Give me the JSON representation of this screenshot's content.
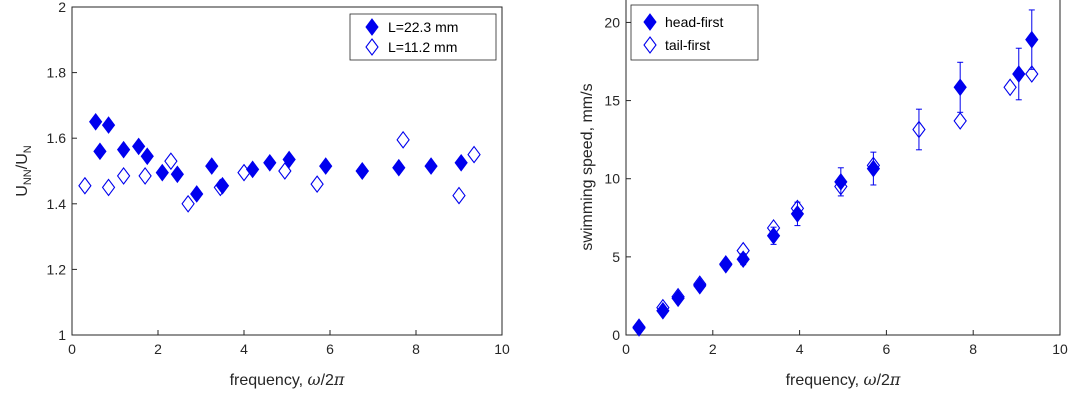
{
  "marker_color": "#0000ee",
  "chart_data": [
    {
      "type": "scatter",
      "xlabel": "frequency, ω/2π",
      "ylabel": "U_NN/U_N",
      "xlim": [
        0,
        10
      ],
      "ylim": [
        1,
        2
      ],
      "xticks": [
        0,
        2,
        4,
        6,
        8,
        10
      ],
      "yticks": [
        1,
        1.2,
        1.4,
        1.6,
        1.8,
        2
      ],
      "xtick_labels": [
        "0",
        "2",
        "4",
        "6",
        "8",
        "10"
      ],
      "ytick_labels": [
        "1",
        "1.2",
        "1.4",
        "1.6",
        "1.8",
        "2"
      ],
      "grid": false,
      "legend_position": "top-right",
      "series": [
        {
          "name": "L=22.3 mm",
          "marker": "filled-diamond",
          "x": [
            0.55,
            0.65,
            0.85,
            1.2,
            1.55,
            1.75,
            2.1,
            2.45,
            2.9,
            3.25,
            3.5,
            4.2,
            4.6,
            5.05,
            5.9,
            6.75,
            7.6,
            8.35,
            9.05
          ],
          "y": [
            1.65,
            1.56,
            1.64,
            1.565,
            1.575,
            1.545,
            1.495,
            1.49,
            1.43,
            1.515,
            1.455,
            1.505,
            1.525,
            1.535,
            1.515,
            1.5,
            1.51,
            1.515,
            1.525
          ]
        },
        {
          "name": "L=11.2 mm",
          "marker": "open-diamond",
          "x": [
            0.3,
            0.85,
            1.2,
            1.7,
            2.3,
            2.7,
            3.45,
            4.0,
            4.95,
            5.7,
            6.75,
            7.7,
            9.0,
            9.35
          ],
          "y": [
            1.455,
            1.45,
            1.485,
            1.485,
            1.53,
            1.4,
            1.45,
            1.495,
            1.5,
            1.46,
            1.5,
            1.595,
            1.425,
            1.55
          ]
        }
      ]
    },
    {
      "type": "scatter",
      "xlabel": "frequency, ω/2π",
      "ylabel": "swimming speed, mm/s",
      "xlim": [
        0,
        10
      ],
      "ylim": [
        0,
        21.5
      ],
      "xticks": [
        0,
        2,
        4,
        6,
        8,
        10
      ],
      "yticks": [
        0,
        5,
        10,
        15,
        20
      ],
      "xtick_labels": [
        "0",
        "2",
        "4",
        "6",
        "8",
        "10"
      ],
      "ytick_labels": [
        "0",
        "5",
        "10",
        "15",
        "20"
      ],
      "grid": false,
      "legend_position": "top-left",
      "series": [
        {
          "name": "head-first",
          "marker": "filled-diamond",
          "x": [
            0.3,
            0.85,
            1.2,
            1.7,
            2.3,
            2.7,
            3.4,
            3.95,
            4.95,
            5.7,
            7.7,
            9.05,
            9.35
          ],
          "y": [
            0.45,
            1.55,
            2.35,
            3.15,
            4.55,
            4.85,
            6.35,
            7.75,
            9.8,
            10.65,
            15.85,
            16.7,
            18.9
          ],
          "error": [
            0,
            0,
            0,
            0,
            0,
            0.35,
            0.55,
            0.75,
            0.9,
            1.05,
            1.6,
            1.65,
            1.9
          ]
        },
        {
          "name": "tail-first",
          "marker": "open-diamond",
          "x": [
            0.3,
            0.85,
            1.2,
            1.7,
            2.3,
            2.7,
            3.4,
            3.95,
            4.95,
            5.7,
            6.75,
            7.7,
            8.85,
            9.35
          ],
          "y": [
            0.5,
            1.75,
            2.45,
            3.25,
            4.5,
            5.4,
            6.85,
            8.1,
            9.5,
            10.85,
            13.15,
            13.7,
            15.85,
            16.7
          ],
          "error": [
            0,
            0,
            0,
            0,
            0,
            0,
            0,
            0,
            0,
            0,
            1.3,
            0,
            0,
            0
          ]
        }
      ]
    }
  ]
}
